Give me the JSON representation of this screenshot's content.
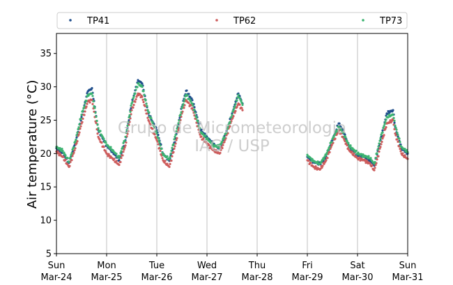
{
  "chart_data": {
    "type": "scatter",
    "ylabel": "Air temperature (°C)",
    "ylim": [
      5,
      38
    ],
    "yticks": [
      5,
      10,
      15,
      20,
      25,
      30,
      35
    ],
    "x_range": [
      "2024-03-24",
      "2024-03-31"
    ],
    "xticks": [
      {
        "day": "Sun",
        "date": "Mar-24"
      },
      {
        "day": "Mon",
        "date": "Mar-25"
      },
      {
        "day": "Tue",
        "date": "Mar-26"
      },
      {
        "day": "Wed",
        "date": "Mar-27"
      },
      {
        "day": "Thu",
        "date": "Mar-28"
      },
      {
        "day": "Fri",
        "date": "Mar-29"
      },
      {
        "day": "Sat",
        "date": "Mar-30"
      },
      {
        "day": "Sun",
        "date": "Mar-31"
      }
    ],
    "grid": "vertical",
    "legend_position": "top",
    "watermark": [
      "Grupo de Micrometeorologia",
      "IAG / USP"
    ],
    "series": [
      {
        "name": "TP41",
        "color": "#1f4e8c",
        "values": [
          [
            "2024-03-24T00:00",
            20.8
          ],
          [
            "2024-03-24T03:00",
            20.1
          ],
          [
            "2024-03-24T06:00",
            18.6
          ],
          [
            "2024-03-24T09:00",
            21.5
          ],
          [
            "2024-03-24T12:00",
            25.5
          ],
          [
            "2024-03-24T15:00",
            29.3
          ],
          [
            "2024-03-24T17:00",
            29.8
          ],
          [
            "2024-03-24T20:00",
            23.5
          ],
          [
            "2024-03-25T00:00",
            21.2
          ],
          [
            "2024-03-25T03:00",
            20.2
          ],
          [
            "2024-03-25T06:00",
            19.0
          ],
          [
            "2024-03-25T09:00",
            22.0
          ],
          [
            "2024-03-25T12:00",
            27.5
          ],
          [
            "2024-03-25T15:00",
            31.0
          ],
          [
            "2024-03-25T17:00",
            30.5
          ],
          [
            "2024-03-25T20:00",
            26.0
          ],
          [
            "2024-03-26T00:00",
            23.5
          ],
          [
            "2024-03-26T03:00",
            20.0
          ],
          [
            "2024-03-26T06:00",
            18.9
          ],
          [
            "2024-03-26T09:00",
            22.3
          ],
          [
            "2024-03-26T12:00",
            27.0
          ],
          [
            "2024-03-26T14:00",
            29.4
          ],
          [
            "2024-03-26T17:00",
            28.0
          ],
          [
            "2024-03-26T21:00",
            23.5
          ],
          [
            "2024-03-27T00:00",
            22.5
          ],
          [
            "2024-03-27T03:00",
            21.4
          ],
          [
            "2024-03-27T06:00",
            20.8
          ],
          [
            "2024-03-27T09:00",
            23.0
          ],
          [
            "2024-03-27T12:00",
            26.0
          ],
          [
            "2024-03-27T15:00",
            29.0
          ],
          [
            "2024-03-27T17:00",
            27.5
          ],
          [
            "2024-03-29T00:00",
            19.5
          ],
          [
            "2024-03-29T03:00",
            18.8
          ],
          [
            "2024-03-29T06:00",
            18.4
          ],
          [
            "2024-03-29T09:00",
            19.5
          ],
          [
            "2024-03-29T12:00",
            22.0
          ],
          [
            "2024-03-29T15:00",
            24.5
          ],
          [
            "2024-03-29T17:00",
            23.5
          ],
          [
            "2024-03-29T20:00",
            21.0
          ],
          [
            "2024-03-30T00:00",
            19.8
          ],
          [
            "2024-03-30T03:00",
            19.5
          ],
          [
            "2024-03-30T06:00",
            19.0
          ],
          [
            "2024-03-30T08:00",
            18.2
          ],
          [
            "2024-03-30T11:00",
            22.0
          ],
          [
            "2024-03-30T14:00",
            26.0
          ],
          [
            "2024-03-30T17:00",
            26.5
          ],
          [
            "2024-03-30T18:00",
            24.0
          ],
          [
            "2024-03-30T21:00",
            20.8
          ],
          [
            "2024-03-31T00:00",
            20.0
          ]
        ]
      },
      {
        "name": "TP62",
        "color": "#cd5c5c",
        "values": [
          [
            "2024-03-24T00:00",
            20.3
          ],
          [
            "2024-03-24T03:00",
            19.5
          ],
          [
            "2024-03-24T06:00",
            18.0
          ],
          [
            "2024-03-24T09:00",
            20.8
          ],
          [
            "2024-03-24T12:00",
            24.5
          ],
          [
            "2024-03-24T15:00",
            27.8
          ],
          [
            "2024-03-24T17:00",
            28.0
          ],
          [
            "2024-03-24T20:00",
            22.5
          ],
          [
            "2024-03-25T00:00",
            20.0
          ],
          [
            "2024-03-25T03:00",
            19.2
          ],
          [
            "2024-03-25T06:00",
            18.3
          ],
          [
            "2024-03-25T09:00",
            21.2
          ],
          [
            "2024-03-25T12:00",
            26.5
          ],
          [
            "2024-03-25T15:00",
            29.0
          ],
          [
            "2024-03-25T17:00",
            28.5
          ],
          [
            "2024-03-25T20:00",
            25.0
          ],
          [
            "2024-03-26T00:00",
            22.0
          ],
          [
            "2024-03-26T03:00",
            19.0
          ],
          [
            "2024-03-26T06:00",
            18.0
          ],
          [
            "2024-03-26T09:00",
            21.5
          ],
          [
            "2024-03-26T12:00",
            26.0
          ],
          [
            "2024-03-26T14:00",
            28.0
          ],
          [
            "2024-03-26T17:00",
            26.8
          ],
          [
            "2024-03-26T21:00",
            22.5
          ],
          [
            "2024-03-27T00:00",
            21.5
          ],
          [
            "2024-03-27T03:00",
            20.5
          ],
          [
            "2024-03-27T06:00",
            20.0
          ],
          [
            "2024-03-27T09:00",
            22.3
          ],
          [
            "2024-03-27T12:00",
            25.2
          ],
          [
            "2024-03-27T15:00",
            27.5
          ],
          [
            "2024-03-27T17:00",
            26.5
          ],
          [
            "2024-03-29T00:00",
            19.0
          ],
          [
            "2024-03-29T03:00",
            18.0
          ],
          [
            "2024-03-29T06:00",
            17.6
          ],
          [
            "2024-03-29T09:00",
            19.0
          ],
          [
            "2024-03-29T12:00",
            21.5
          ],
          [
            "2024-03-29T15:00",
            23.5
          ],
          [
            "2024-03-29T17:00",
            22.5
          ],
          [
            "2024-03-29T20:00",
            20.5
          ],
          [
            "2024-03-30T00:00",
            19.3
          ],
          [
            "2024-03-30T03:00",
            19.0
          ],
          [
            "2024-03-30T06:00",
            18.5
          ],
          [
            "2024-03-30T08:00",
            17.5
          ],
          [
            "2024-03-30T11:00",
            21.0
          ],
          [
            "2024-03-30T14:00",
            24.5
          ],
          [
            "2024-03-30T17:00",
            25.0
          ],
          [
            "2024-03-30T18:00",
            23.0
          ],
          [
            "2024-03-30T21:00",
            20.0
          ],
          [
            "2024-03-31T00:00",
            19.2
          ]
        ]
      },
      {
        "name": "TP73",
        "color": "#3cb371",
        "values": [
          [
            "2024-03-24T00:00",
            21.0
          ],
          [
            "2024-03-24T03:00",
            20.4
          ],
          [
            "2024-03-24T06:00",
            18.8
          ],
          [
            "2024-03-24T09:00",
            21.8
          ],
          [
            "2024-03-24T12:00",
            25.8
          ],
          [
            "2024-03-24T15:00",
            28.8
          ],
          [
            "2024-03-24T17:00",
            29.0
          ],
          [
            "2024-03-24T20:00",
            23.8
          ],
          [
            "2024-03-25T00:00",
            21.3
          ],
          [
            "2024-03-25T03:00",
            20.5
          ],
          [
            "2024-03-25T06:00",
            19.3
          ],
          [
            "2024-03-25T09:00",
            22.5
          ],
          [
            "2024-03-25T12:00",
            27.5
          ],
          [
            "2024-03-25T15:00",
            30.5
          ],
          [
            "2024-03-25T17:00",
            30.0
          ],
          [
            "2024-03-25T20:00",
            26.2
          ],
          [
            "2024-03-26T00:00",
            23.0
          ],
          [
            "2024-03-26T03:00",
            19.8
          ],
          [
            "2024-03-26T06:00",
            19.2
          ],
          [
            "2024-03-26T09:00",
            22.8
          ],
          [
            "2024-03-26T12:00",
            26.8
          ],
          [
            "2024-03-26T14:00",
            28.8
          ],
          [
            "2024-03-26T17:00",
            27.5
          ],
          [
            "2024-03-26T21:00",
            23.2
          ],
          [
            "2024-03-27T00:00",
            22.3
          ],
          [
            "2024-03-27T03:00",
            21.2
          ],
          [
            "2024-03-27T06:00",
            21.0
          ],
          [
            "2024-03-27T09:00",
            23.0
          ],
          [
            "2024-03-27T12:00",
            25.8
          ],
          [
            "2024-03-27T15:00",
            28.8
          ],
          [
            "2024-03-27T17:00",
            27.3
          ],
          [
            "2024-03-29T00:00",
            19.8
          ],
          [
            "2024-03-29T03:00",
            18.8
          ],
          [
            "2024-03-29T06:00",
            18.5
          ],
          [
            "2024-03-29T09:00",
            19.8
          ],
          [
            "2024-03-29T12:00",
            22.2
          ],
          [
            "2024-03-29T15:00",
            24.0
          ],
          [
            "2024-03-29T17:00",
            23.2
          ],
          [
            "2024-03-29T20:00",
            21.2
          ],
          [
            "2024-03-30T00:00",
            20.0
          ],
          [
            "2024-03-30T03:00",
            19.7
          ],
          [
            "2024-03-30T06:00",
            19.3
          ],
          [
            "2024-03-30T08:00",
            18.5
          ],
          [
            "2024-03-30T11:00",
            22.3
          ],
          [
            "2024-03-30T14:00",
            25.5
          ],
          [
            "2024-03-30T17:00",
            25.8
          ],
          [
            "2024-03-30T18:00",
            24.2
          ],
          [
            "2024-03-30T21:00",
            21.0
          ],
          [
            "2024-03-31T00:00",
            20.2
          ]
        ]
      }
    ]
  }
}
